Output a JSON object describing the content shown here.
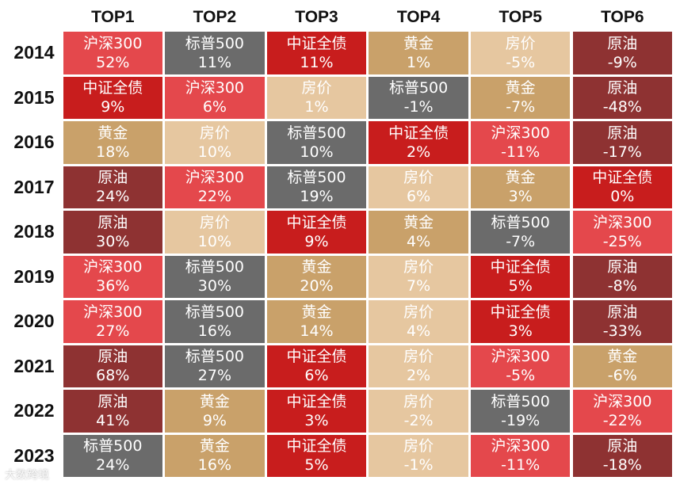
{
  "chart_data": {
    "type": "table",
    "columns": [
      "TOP1",
      "TOP2",
      "TOP3",
      "TOP4",
      "TOP5",
      "TOP6"
    ],
    "rows": [
      {
        "year": "2014",
        "cells": [
          [
            "沪深300",
            "52%"
          ],
          [
            "标普500",
            "11%"
          ],
          [
            "中证全债",
            "11%"
          ],
          [
            "黄金",
            "1%"
          ],
          [
            "房价",
            "-5%"
          ],
          [
            "原油",
            "-9%"
          ]
        ]
      },
      {
        "year": "2015",
        "cells": [
          [
            "中证全债",
            "9%"
          ],
          [
            "沪深300",
            "6%"
          ],
          [
            "房价",
            "1%"
          ],
          [
            "标普500",
            "-1%"
          ],
          [
            "黄金",
            "-7%"
          ],
          [
            "原油",
            "-48%"
          ]
        ]
      },
      {
        "year": "2016",
        "cells": [
          [
            "黄金",
            "18%"
          ],
          [
            "房价",
            "10%"
          ],
          [
            "标普500",
            "10%"
          ],
          [
            "中证全债",
            "2%"
          ],
          [
            "沪深300",
            "-11%"
          ],
          [
            "原油",
            "-17%"
          ]
        ]
      },
      {
        "year": "2017",
        "cells": [
          [
            "原油",
            "24%"
          ],
          [
            "沪深300",
            "22%"
          ],
          [
            "标普500",
            "19%"
          ],
          [
            "房价",
            "6%"
          ],
          [
            "黄金",
            "3%"
          ],
          [
            "中证全债",
            "0%"
          ]
        ]
      },
      {
        "year": "2018",
        "cells": [
          [
            "原油",
            "30%"
          ],
          [
            "房价",
            "10%"
          ],
          [
            "中证全债",
            "9%"
          ],
          [
            "黄金",
            "4%"
          ],
          [
            "标普500",
            "-7%"
          ],
          [
            "沪深300",
            "-25%"
          ]
        ]
      },
      {
        "year": "2019",
        "cells": [
          [
            "沪深300",
            "36%"
          ],
          [
            "标普500",
            "30%"
          ],
          [
            "黄金",
            "20%"
          ],
          [
            "房价",
            "7%"
          ],
          [
            "中证全债",
            "5%"
          ],
          [
            "原油",
            "-8%"
          ]
        ]
      },
      {
        "year": "2020",
        "cells": [
          [
            "沪深300",
            "27%"
          ],
          [
            "标普500",
            "16%"
          ],
          [
            "黄金",
            "14%"
          ],
          [
            "房价",
            "4%"
          ],
          [
            "中证全债",
            "3%"
          ],
          [
            "原油",
            "-33%"
          ]
        ]
      },
      {
        "year": "2021",
        "cells": [
          [
            "原油",
            "68%"
          ],
          [
            "标普500",
            "27%"
          ],
          [
            "中证全债",
            "6%"
          ],
          [
            "房价",
            "2%"
          ],
          [
            "沪深300",
            "-5%"
          ],
          [
            "黄金",
            "-6%"
          ]
        ]
      },
      {
        "year": "2022",
        "cells": [
          [
            "原油",
            "41%"
          ],
          [
            "黄金",
            "9%"
          ],
          [
            "中证全债",
            "3%"
          ],
          [
            "房价",
            "-2%"
          ],
          [
            "标普500",
            "-19%"
          ],
          [
            "沪深300",
            "-22%"
          ]
        ]
      },
      {
        "year": "2023",
        "cells": [
          [
            "标普500",
            "24%"
          ],
          [
            "黄金",
            "16%"
          ],
          [
            "中证全债",
            "5%"
          ],
          [
            "房价",
            "-1%"
          ],
          [
            "沪深300",
            "-11%"
          ],
          [
            "原油",
            "-18%"
          ]
        ]
      }
    ],
    "asset_colors": {
      "沪深300": "#e4484c",
      "标普500": "#6b6b6b",
      "中证全债": "#c81d1d",
      "黄金": "#c9a16a",
      "房价": "#e6c7a0",
      "原油": "#8e3232"
    }
  },
  "watermark": "大数跨境"
}
